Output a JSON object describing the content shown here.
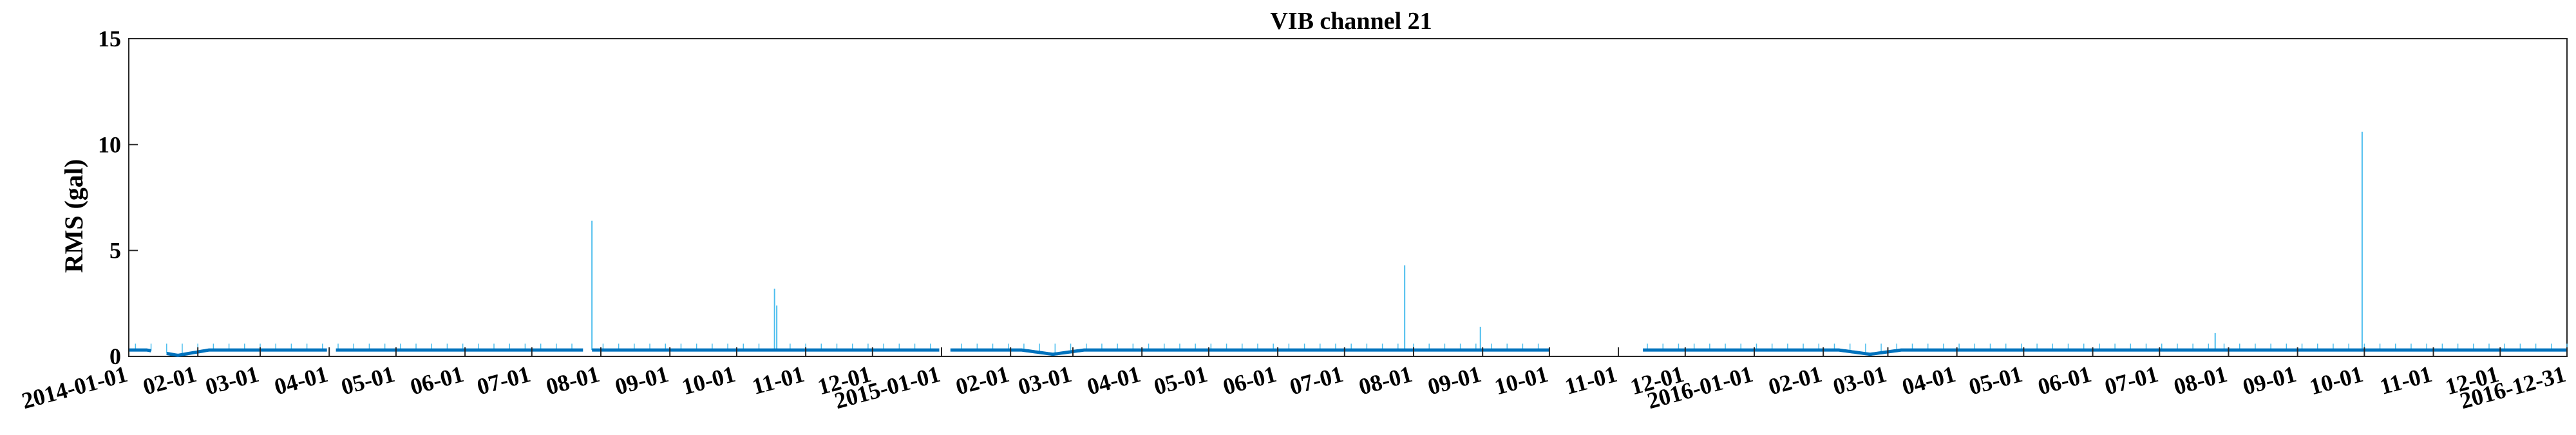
{
  "chart_data": {
    "type": "line",
    "title": "VIB channel 21",
    "xlabel": "",
    "ylabel": "RMS (gal)",
    "xlim": [
      "2014-01-01",
      "2016-12-31"
    ],
    "ylim": [
      0,
      15
    ],
    "yticks": [
      0,
      5,
      10,
      15
    ],
    "grid": false,
    "line_color": "#0072BD",
    "spike_color": "#4DBEEE",
    "xticks": [
      {
        "date": "2014-01-01",
        "label": "2014-01-01"
      },
      {
        "date": "2014-02-01",
        "label": "02-01"
      },
      {
        "date": "2014-03-01",
        "label": "03-01"
      },
      {
        "date": "2014-04-01",
        "label": "04-01"
      },
      {
        "date": "2014-05-01",
        "label": "05-01"
      },
      {
        "date": "2014-06-01",
        "label": "06-01"
      },
      {
        "date": "2014-07-01",
        "label": "07-01"
      },
      {
        "date": "2014-08-01",
        "label": "08-01"
      },
      {
        "date": "2014-09-01",
        "label": "09-01"
      },
      {
        "date": "2014-10-01",
        "label": "10-01"
      },
      {
        "date": "2014-11-01",
        "label": "11-01"
      },
      {
        "date": "2014-12-01",
        "label": "12-01"
      },
      {
        "date": "2015-01-01",
        "label": "2015-01-01"
      },
      {
        "date": "2015-02-01",
        "label": "02-01"
      },
      {
        "date": "2015-03-01",
        "label": "03-01"
      },
      {
        "date": "2015-04-01",
        "label": "04-01"
      },
      {
        "date": "2015-05-01",
        "label": "05-01"
      },
      {
        "date": "2015-06-01",
        "label": "06-01"
      },
      {
        "date": "2015-07-01",
        "label": "07-01"
      },
      {
        "date": "2015-08-01",
        "label": "08-01"
      },
      {
        "date": "2015-09-01",
        "label": "09-01"
      },
      {
        "date": "2015-10-01",
        "label": "10-01"
      },
      {
        "date": "2015-11-01",
        "label": "11-01"
      },
      {
        "date": "2015-12-01",
        "label": "12-01"
      },
      {
        "date": "2016-01-01",
        "label": "2016-01-01"
      },
      {
        "date": "2016-02-01",
        "label": "02-01"
      },
      {
        "date": "2016-03-01",
        "label": "03-01"
      },
      {
        "date": "2016-04-01",
        "label": "04-01"
      },
      {
        "date": "2016-05-01",
        "label": "05-01"
      },
      {
        "date": "2016-06-01",
        "label": "06-01"
      },
      {
        "date": "2016-07-01",
        "label": "07-01"
      },
      {
        "date": "2016-08-01",
        "label": "08-01"
      },
      {
        "date": "2016-09-01",
        "label": "09-01"
      },
      {
        "date": "2016-10-01",
        "label": "10-01"
      },
      {
        "date": "2016-11-01",
        "label": "11-01"
      },
      {
        "date": "2016-12-01",
        "label": "12-01"
      },
      {
        "date": "2016-12-31",
        "label": "2016-12-31"
      }
    ],
    "segments": [
      {
        "start": "2014-01-01",
        "end": "2014-01-11",
        "baseline": 0.3
      },
      {
        "start": "2014-01-18",
        "end": "2014-03-31",
        "baseline": 0.3
      },
      {
        "start": "2014-04-04",
        "end": "2014-07-24",
        "baseline": 0.3
      },
      {
        "start": "2014-07-28",
        "end": "2014-12-31",
        "baseline": 0.3
      },
      {
        "start": "2015-01-05",
        "end": "2015-10-01",
        "baseline": 0.3
      },
      {
        "start": "2015-11-12",
        "end": "2016-12-31",
        "baseline": 0.3
      }
    ],
    "dips": [
      {
        "center": "2014-01-23",
        "value": 0.05
      },
      {
        "center": "2015-02-20",
        "value": 0.1
      },
      {
        "center": "2016-02-22",
        "value": 0.1
      }
    ],
    "spikes": [
      {
        "date": "2014-07-28",
        "value": 6.4
      },
      {
        "date": "2014-10-18",
        "value": 3.2
      },
      {
        "date": "2014-10-19",
        "value": 2.4
      },
      {
        "date": "2015-07-28",
        "value": 4.3
      },
      {
        "date": "2015-08-31",
        "value": 1.4
      },
      {
        "date": "2016-07-26",
        "value": 1.1
      },
      {
        "date": "2016-09-30",
        "value": 10.6
      }
    ],
    "daily_spike_value": 0.6
  }
}
